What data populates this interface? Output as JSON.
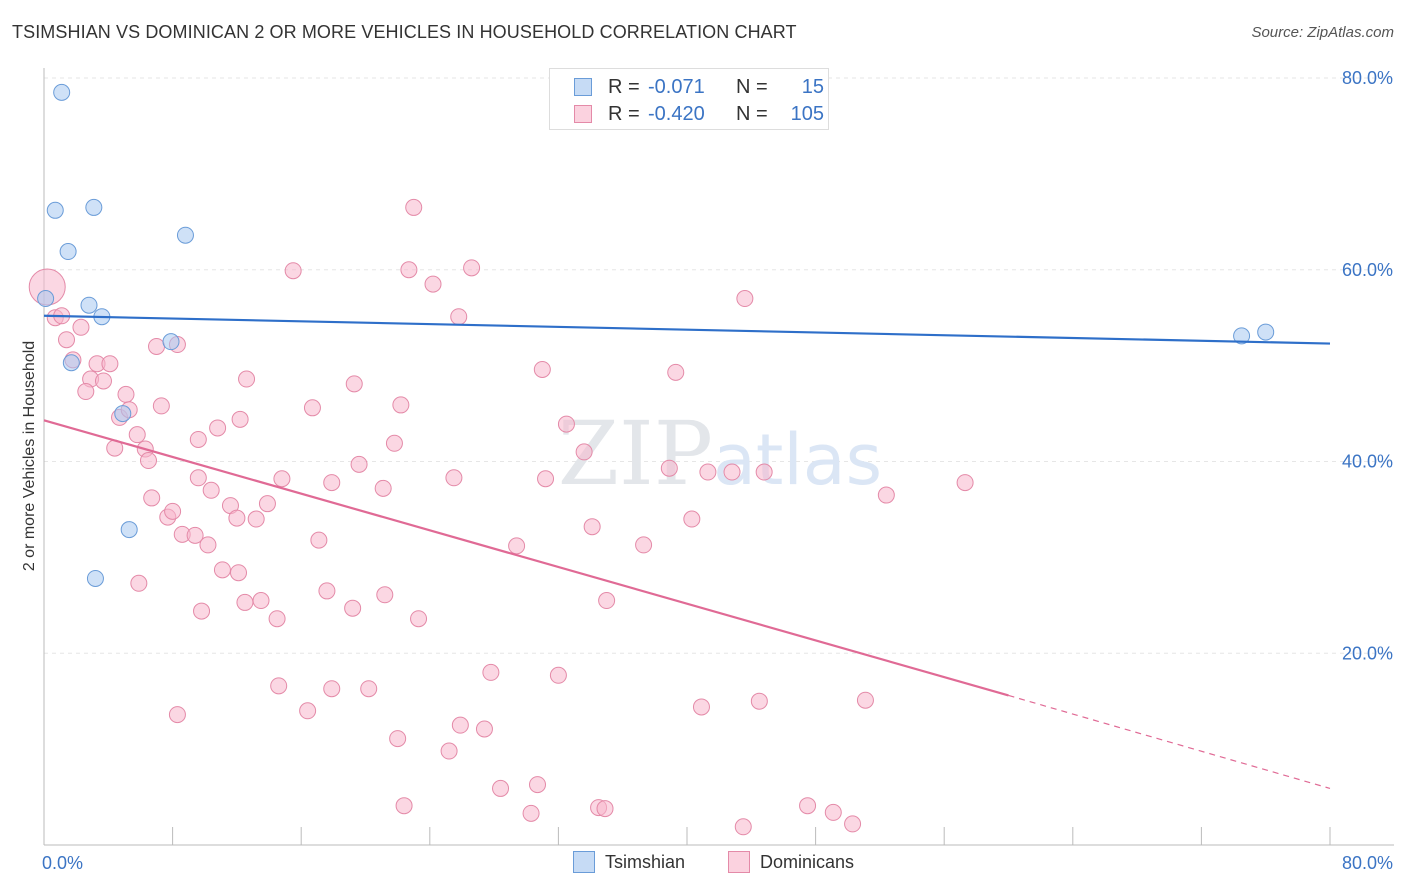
{
  "title": "TSIMSHIAN VS DOMINICAN 2 OR MORE VEHICLES IN HOUSEHOLD CORRELATION CHART",
  "source": "Source: ZipAtlas.com",
  "watermark": "ZIPatlas",
  "legend_stats": [
    {
      "r_label": "R =",
      "r_value": "-0.071",
      "n_label": "N =",
      "n_value": "15",
      "color": "#a8c8f0"
    },
    {
      "r_label": "R =",
      "r_value": "-0.420",
      "n_label": "N =",
      "n_value": "105",
      "color": "#f7b7cc"
    }
  ],
  "chart_data": {
    "type": "scatter",
    "xlabel": "",
    "ylabel": "2 or more Vehicles in Household",
    "xlim": [
      0,
      80
    ],
    "ylim": [
      0,
      80
    ],
    "x_tick_labels": [
      "0.0%",
      "80.0%"
    ],
    "y_ticks": [
      20,
      40,
      60,
      80
    ],
    "y_tick_labels": [
      "20.0%",
      "40.0%",
      "60.0%",
      "80.0%"
    ],
    "legend_position": "bottom",
    "grid": true,
    "series": [
      {
        "name": "Tsimshian",
        "color": "#a8c8f0",
        "stroke": "#6a9cd8",
        "trend": {
          "x0": 0,
          "y0": 55.2,
          "x1": 80,
          "y1": 52.3,
          "color": "#2e6fc9"
        },
        "points": [
          [
            1.1,
            78.5
          ],
          [
            0.7,
            66.2
          ],
          [
            3.1,
            66.5
          ],
          [
            1.5,
            61.9
          ],
          [
            8.8,
            63.6
          ],
          [
            0.1,
            57.0
          ],
          [
            2.8,
            56.3
          ],
          [
            3.6,
            55.1
          ],
          [
            1.7,
            50.3
          ],
          [
            7.9,
            52.5
          ],
          [
            4.9,
            45.0
          ],
          [
            5.3,
            32.9
          ],
          [
            3.2,
            27.8
          ],
          [
            74.5,
            53.1
          ],
          [
            76.0,
            53.5
          ]
        ]
      },
      {
        "name": "Dominicans",
        "color": "#f7b7cc",
        "stroke": "#e48aa8",
        "trend": {
          "x0": 0,
          "y0": 44.3,
          "x1": 60,
          "y1": 15.6,
          "x_dash_end": 80,
          "y_dash_end": 5.9,
          "color": "#e06a95"
        },
        "points": [
          [
            0.2,
            58.2
          ],
          [
            0.7,
            55.0
          ],
          [
            1.1,
            55.2
          ],
          [
            1.4,
            52.7
          ],
          [
            1.8,
            50.6
          ],
          [
            2.3,
            54.0
          ],
          [
            2.9,
            48.6
          ],
          [
            2.6,
            47.3
          ],
          [
            3.3,
            50.2
          ],
          [
            3.7,
            48.4
          ],
          [
            4.1,
            50.2
          ],
          [
            5.1,
            47.0
          ],
          [
            4.7,
            44.6
          ],
          [
            5.3,
            45.4
          ],
          [
            4.4,
            41.4
          ],
          [
            5.8,
            42.8
          ],
          [
            6.3,
            41.3
          ],
          [
            6.5,
            40.1
          ],
          [
            7.3,
            45.8
          ],
          [
            8.3,
            52.2
          ],
          [
            9.6,
            42.3
          ],
          [
            10.4,
            37.0
          ],
          [
            10.8,
            43.5
          ],
          [
            11.1,
            28.7
          ],
          [
            11.6,
            35.4
          ],
          [
            12.0,
            34.1
          ],
          [
            12.2,
            44.4
          ],
          [
            12.5,
            25.3
          ],
          [
            12.6,
            48.6
          ],
          [
            13.5,
            25.5
          ],
          [
            13.9,
            35.6
          ],
          [
            14.5,
            23.6
          ],
          [
            14.8,
            38.2
          ],
          [
            15.5,
            59.9
          ],
          [
            16.7,
            45.6
          ],
          [
            17.1,
            31.8
          ],
          [
            17.6,
            26.5
          ],
          [
            17.9,
            37.8
          ],
          [
            17.9,
            16.3
          ],
          [
            19.2,
            24.7
          ],
          [
            19.3,
            48.1
          ],
          [
            19.6,
            39.7
          ],
          [
            21.1,
            37.2
          ],
          [
            21.2,
            26.1
          ],
          [
            21.8,
            41.9
          ],
          [
            22.2,
            45.9
          ],
          [
            22.4,
            4.1
          ],
          [
            22.7,
            60.0
          ],
          [
            23.0,
            66.5
          ],
          [
            23.3,
            23.6
          ],
          [
            24.2,
            58.5
          ],
          [
            25.2,
            9.8
          ],
          [
            25.5,
            38.3
          ],
          [
            25.8,
            55.1
          ],
          [
            25.9,
            12.5
          ],
          [
            26.6,
            60.2
          ],
          [
            27.4,
            12.1
          ],
          [
            27.8,
            18.0
          ],
          [
            28.4,
            5.9
          ],
          [
            29.4,
            31.2
          ],
          [
            30.3,
            3.3
          ],
          [
            30.7,
            6.3
          ],
          [
            31.0,
            49.6
          ],
          [
            31.2,
            38.2
          ],
          [
            32.0,
            17.7
          ],
          [
            32.5,
            43.9
          ],
          [
            33.6,
            41.0
          ],
          [
            34.1,
            33.2
          ],
          [
            34.5,
            3.9
          ],
          [
            34.9,
            3.8
          ],
          [
            35.0,
            25.5
          ],
          [
            37.3,
            31.3
          ],
          [
            38.9,
            39.3
          ],
          [
            39.3,
            49.3
          ],
          [
            40.3,
            34.0
          ],
          [
            40.9,
            14.4
          ],
          [
            41.3,
            38.9
          ],
          [
            42.8,
            38.9
          ],
          [
            43.5,
            1.9
          ],
          [
            43.6,
            57.0
          ],
          [
            44.5,
            15.0
          ],
          [
            44.8,
            38.9
          ],
          [
            47.5,
            4.1
          ],
          [
            49.1,
            3.4
          ],
          [
            50.3,
            2.2
          ],
          [
            51.1,
            15.1
          ],
          [
            52.4,
            36.5
          ],
          [
            57.3,
            37.8
          ],
          [
            8.3,
            13.6
          ],
          [
            9.8,
            24.4
          ],
          [
            16.4,
            14.0
          ],
          [
            22.0,
            11.1
          ],
          [
            14.6,
            16.6
          ],
          [
            20.2,
            16.3
          ],
          [
            5.9,
            27.3
          ],
          [
            7.7,
            34.2
          ],
          [
            8.6,
            32.4
          ],
          [
            9.4,
            32.3
          ],
          [
            9.6,
            38.3
          ],
          [
            10.2,
            31.3
          ],
          [
            12.1,
            28.4
          ],
          [
            13.2,
            34.0
          ],
          [
            8.0,
            34.8
          ],
          [
            6.7,
            36.2
          ],
          [
            7.0,
            52.0
          ]
        ]
      }
    ]
  }
}
